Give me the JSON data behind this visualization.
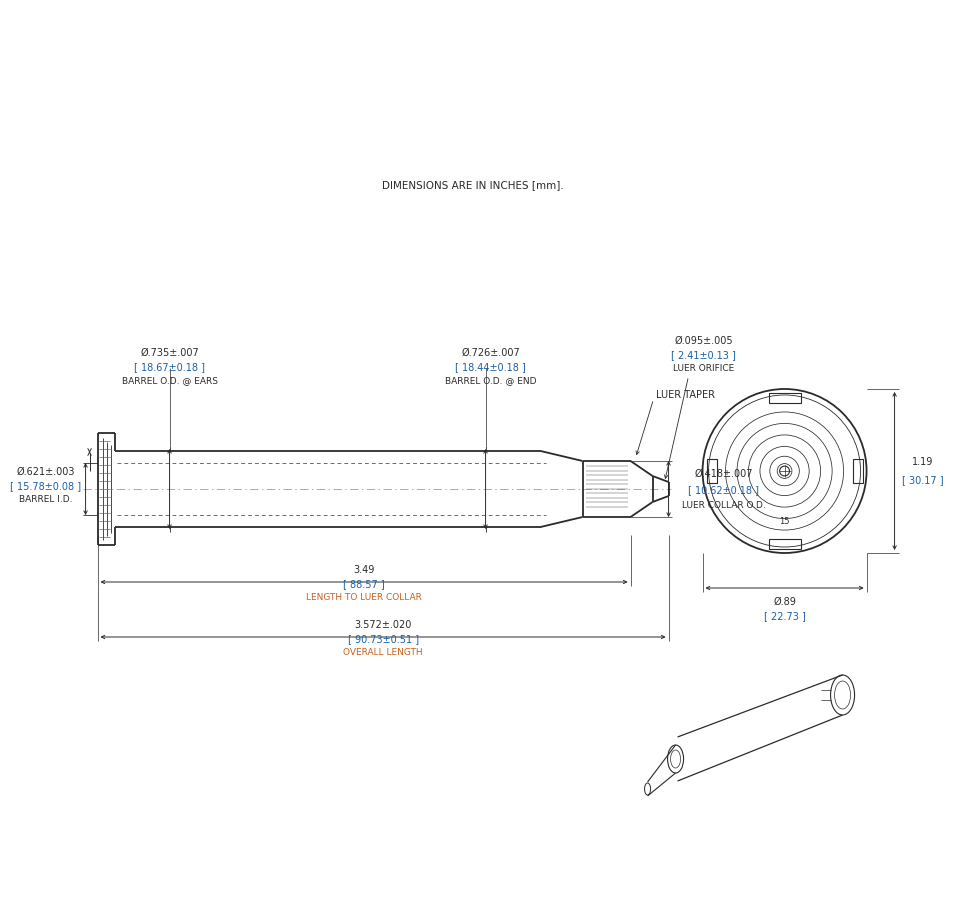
{
  "bg_color": "#ffffff",
  "line_color": "#2a2a2a",
  "dim_color": "#2a2a2a",
  "orange_color": "#c8601a",
  "blue_color": "#1a5fa8",
  "note_text": "DIMENSIONS ARE IN INCHES [mm].",
  "annotations": {
    "barrel_od_ears_inch": "Ø.735±.007",
    "barrel_od_ears_mm": "[ 18.67±0.18 ]",
    "barrel_od_ears_label": "BARREL O.D. @ EARS",
    "barrel_od_end_inch": "Ø.726±.007",
    "barrel_od_end_mm": "[ 18.44±0.18 ]",
    "barrel_od_end_label": "BARREL O.D. @ END",
    "barrel_id_inch": "Ø.621±.003",
    "barrel_id_mm": "[ 15.78±0.08 ]",
    "barrel_id_label": "BARREL I.D.",
    "luer_orifice_inch": "Ø.095±.005",
    "luer_orifice_mm": "[ 2.41±0.13 ]",
    "luer_orifice_label": "LUER ORIFICE",
    "luer_taper_label": "LUER TAPER",
    "luer_collar_inch": "Ø.418±.007",
    "luer_collar_mm": "[ 10.62±0.18 ]",
    "luer_collar_label": "LUER COLLAR O.D.",
    "length_luer_inch": "3.49",
    "length_luer_mm": "[ 88.57 ]",
    "length_luer_label": "LENGTH TO LUER COLLAR",
    "overall_length_inch": "3.572±.020",
    "overall_length_mm": "[ 90.73±0.51 ]",
    "overall_length_label": "OVERALL LENGTH",
    "end_view_height_inch": "1.19",
    "end_view_height_mm": "[ 30.17 ]",
    "end_view_od_inch": "Ø.89",
    "end_view_od_mm": "[ 22.73 ]"
  }
}
